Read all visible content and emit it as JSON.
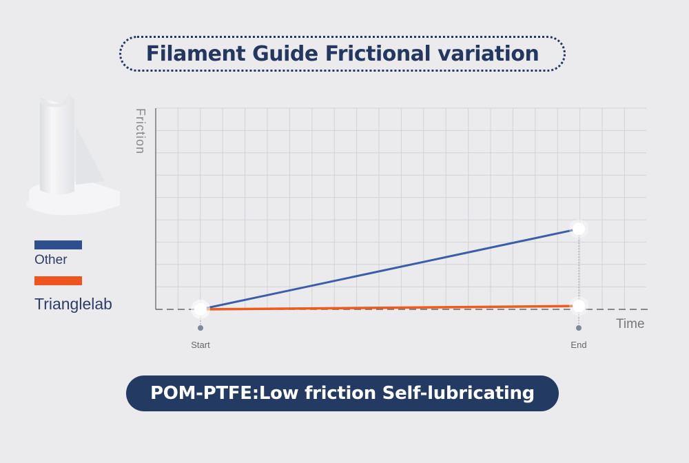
{
  "title": "Filament Guide Frictional variation",
  "banner": "POM-PTFE:Low friction Self-lubricating",
  "legend": [
    {
      "label": "Other",
      "color": "#2f4e8e"
    },
    {
      "label": "Trianglelab",
      "color": "#f0541e"
    }
  ],
  "chart_data": {
    "type": "line",
    "ylabel": "Friction",
    "xlabel": "Time",
    "categories": [
      "Start",
      "End"
    ],
    "series": [
      {
        "name": "Other",
        "color": "#3a5ea8",
        "values": [
          0,
          3.6
        ]
      },
      {
        "name": "Trianglelab",
        "color": "#ef5a1d",
        "values": [
          0,
          0.15
        ]
      }
    ],
    "ylim": [
      0,
      9
    ],
    "grid": true,
    "legend_position": "left"
  }
}
